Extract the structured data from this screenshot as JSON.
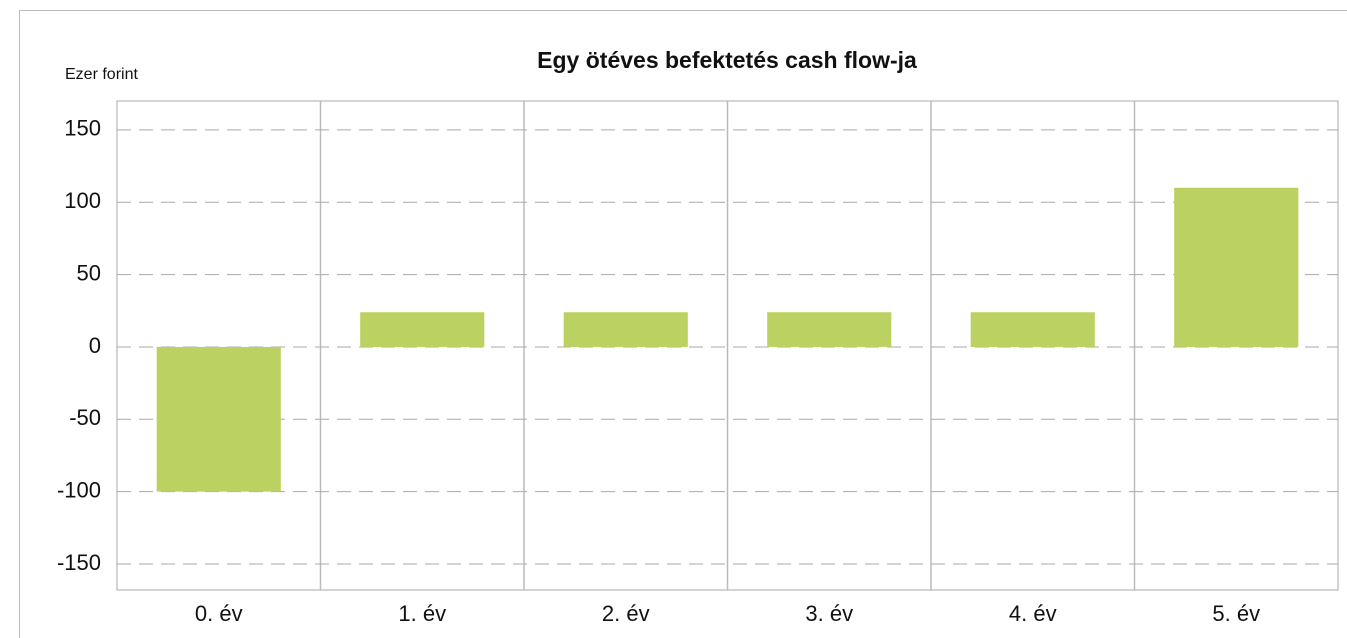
{
  "chart_data": {
    "type": "bar",
    "title": "Egy ötéves befektetés cash flow-ja",
    "y_axis_label": "Ezer forint",
    "categories": [
      "0. év",
      "1. év",
      "2. év",
      "3. év",
      "4. év",
      "5. év"
    ],
    "values": [
      -100,
      24,
      24,
      24,
      24,
      110
    ],
    "color": "#bbd262",
    "ylim": [
      -168,
      170
    ],
    "yticks": [
      -150,
      -100,
      -50,
      0,
      50,
      100,
      150
    ],
    "grid": true
  }
}
